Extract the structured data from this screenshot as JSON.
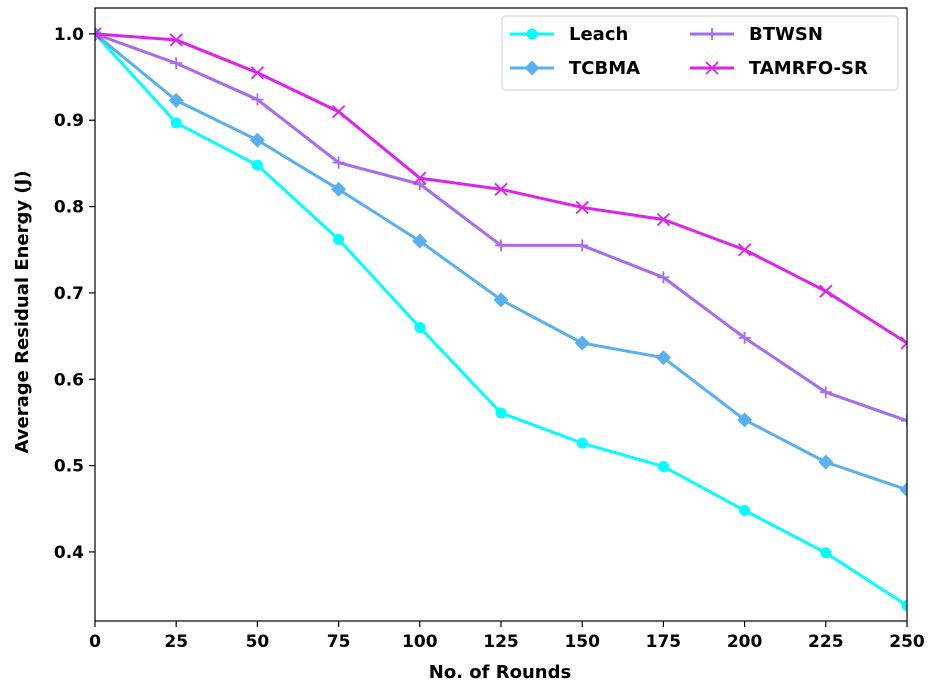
{
  "chart_data": {
    "type": "line",
    "title": "",
    "xlabel": "No. of Rounds",
    "ylabel": "Average Residual Energy (J)",
    "x": [
      0,
      25,
      50,
      75,
      100,
      125,
      150,
      175,
      200,
      225,
      250
    ],
    "xticks": [
      "0",
      "25",
      "50",
      "75",
      "100",
      "125",
      "150",
      "175",
      "200",
      "225",
      "250"
    ],
    "yticks": [
      "0.4",
      "0.5",
      "0.6",
      "0.7",
      "0.8",
      "0.9",
      "1.0"
    ],
    "xlim": [
      0,
      250
    ],
    "ylim": [
      0.32,
      1.03
    ],
    "grid": false,
    "legend_position": "top-right",
    "series": [
      {
        "name": "Leach",
        "color": "#00FFFF",
        "marker": "circle",
        "values": [
          1.0,
          0.897,
          0.848,
          0.762,
          0.66,
          0.561,
          0.526,
          0.499,
          0.448,
          0.399,
          0.338
        ]
      },
      {
        "name": "TCBMA",
        "color": "#5AAFF0",
        "marker": "diamond",
        "values": [
          1.0,
          0.923,
          0.877,
          0.82,
          0.76,
          0.692,
          0.642,
          0.625,
          0.553,
          0.504,
          0.472
        ]
      },
      {
        "name": "BTWSN",
        "color": "#A66BF0",
        "marker": "plus",
        "values": [
          1.0,
          0.966,
          0.924,
          0.851,
          0.826,
          0.755,
          0.755,
          0.718,
          0.648,
          0.585,
          0.552
        ]
      },
      {
        "name": "TAMRFO-SR",
        "color": "#DD22EE",
        "marker": "x",
        "values": [
          1.0,
          0.993,
          0.955,
          0.91,
          0.833,
          0.82,
          0.799,
          0.785,
          0.75,
          0.702,
          0.642
        ]
      }
    ]
  }
}
